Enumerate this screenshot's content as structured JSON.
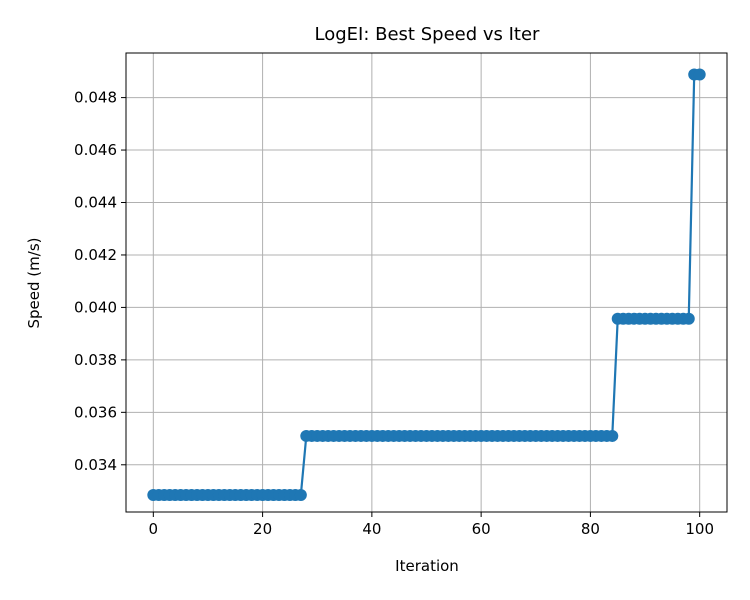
{
  "chart_data": {
    "type": "line",
    "title": "LogEI: Best Speed vs Iter",
    "xlabel": "Iteration",
    "ylabel": "Speed (m/s)",
    "xlim": [
      -5,
      105
    ],
    "ylim": [
      0.0322,
      0.0497
    ],
    "grid": true,
    "line_color": "#1f77b4",
    "x_ticks": [
      0,
      20,
      40,
      60,
      80,
      100
    ],
    "x_tick_labels": [
      "0",
      "20",
      "40",
      "60",
      "80",
      "100"
    ],
    "y_ticks": [
      0.034,
      0.036,
      0.038,
      0.04,
      0.042,
      0.044,
      0.046,
      0.048
    ],
    "y_tick_labels": [
      "0.034",
      "0.036",
      "0.038",
      "0.040",
      "0.042",
      "0.044",
      "0.046",
      "0.048"
    ],
    "segments": [
      {
        "from_iter": 0,
        "to_iter": 27,
        "speed": 0.03285
      },
      {
        "from_iter": 28,
        "to_iter": 84,
        "speed": 0.0351
      },
      {
        "from_iter": 85,
        "to_iter": 98,
        "speed": 0.03957
      },
      {
        "from_iter": 99,
        "to_iter": 100,
        "speed": 0.04888
      }
    ]
  }
}
